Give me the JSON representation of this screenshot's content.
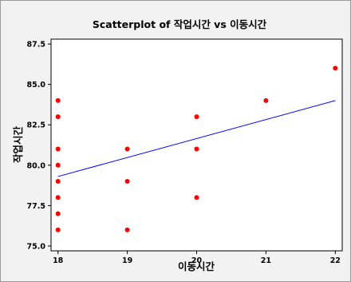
{
  "chart_data": {
    "type": "scatter",
    "title": "Scatterplot of 작업시간 vs 이동시간",
    "xlabel": "이동시간",
    "ylabel": "작업시간",
    "xlim": [
      17.9,
      22.1
    ],
    "ylim": [
      74.7,
      87.8
    ],
    "x_ticks": [
      18,
      19,
      20,
      21,
      22
    ],
    "y_ticks": [
      75.0,
      77.5,
      80.0,
      82.5,
      85.0,
      87.5
    ],
    "x_tick_labels": [
      "18",
      "19",
      "20",
      "21",
      "22"
    ],
    "y_tick_labels": [
      "75.0",
      "77.5",
      "80.0",
      "82.5",
      "85.0",
      "87.5"
    ],
    "points": [
      {
        "x": 18,
        "y": 84
      },
      {
        "x": 18,
        "y": 83
      },
      {
        "x": 18,
        "y": 81
      },
      {
        "x": 18,
        "y": 80
      },
      {
        "x": 18,
        "y": 79
      },
      {
        "x": 18,
        "y": 78
      },
      {
        "x": 18,
        "y": 77
      },
      {
        "x": 18,
        "y": 76
      },
      {
        "x": 19,
        "y": 81
      },
      {
        "x": 19,
        "y": 79
      },
      {
        "x": 19,
        "y": 76
      },
      {
        "x": 20,
        "y": 83
      },
      {
        "x": 20,
        "y": 81
      },
      {
        "x": 20,
        "y": 78
      },
      {
        "x": 21,
        "y": 84
      },
      {
        "x": 22,
        "y": 86
      }
    ],
    "fit_line": {
      "x": [
        18,
        22
      ],
      "y": [
        79.3,
        84.0
      ]
    },
    "grid": false,
    "marker_color": "#ff0000",
    "line_color": "#0000ff"
  }
}
